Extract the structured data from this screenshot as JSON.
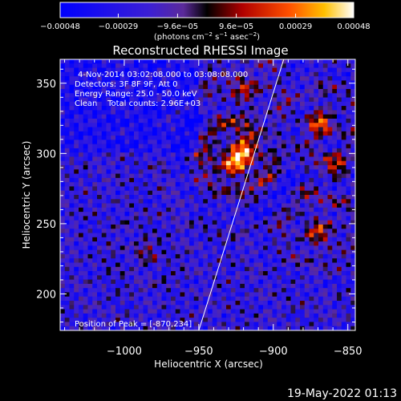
{
  "chart_data": {
    "type": "heatmap",
    "title": "Reconstructed RHESSI Image",
    "xlabel": "Heliocentric X (arcsec)",
    "ylabel": "Heliocentric Y (arcsec)",
    "xlim": [
      -1043,
      -845
    ],
    "ylim": [
      174,
      367
    ],
    "x_ticks": [
      {
        "value": -1000,
        "label": "−1000"
      },
      {
        "value": -950,
        "label": "−950"
      },
      {
        "value": -900,
        "label": "−900"
      },
      {
        "value": -850,
        "label": "−850"
      }
    ],
    "y_ticks": [
      {
        "value": 200,
        "label": "200"
      },
      {
        "value": 250,
        "label": "250"
      },
      {
        "value": 300,
        "label": "300"
      },
      {
        "value": 350,
        "label": "350"
      }
    ],
    "colorbar": {
      "range": [
        -0.00048,
        0.00048
      ],
      "ticks": [
        {
          "value": -0.00048,
          "label": "−0.00048"
        },
        {
          "value": -0.00029,
          "label": "−0.00029"
        },
        {
          "value": -9.6e-05,
          "label": "−9.6e−05"
        },
        {
          "value": 9.6e-05,
          "label": "9.6e−05"
        },
        {
          "value": 0.00029,
          "label": "0.00029"
        },
        {
          "value": 0.00048,
          "label": "0.00048"
        }
      ],
      "unit_label": {
        "pre": "(photons cm",
        "e1": "−2",
        "mid": " s",
        "e2": "−1",
        "mid2": " asec",
        "e3": "−2",
        "post": ")"
      }
    },
    "annotations": {
      "time": "4-Nov-2014 03:02:08.000 to 03:08:08.000",
      "detectors": "Detectors: 3F 8F 9F, Att 0",
      "energy": "Energy Range: 25.0 - 50.0 keV",
      "method": "Clean    Total counts: 2.96E+03",
      "peak": "Position of Peak = [-870,234]"
    },
    "limb_line": [
      [
        -950,
        174
      ],
      [
        -893,
        367
      ]
    ],
    "peak": {
      "x": -870,
      "y": 234
    },
    "sources": [
      {
        "x": -925,
        "y": 295,
        "amp": 0.00048,
        "sigma": 11
      },
      {
        "x": -918,
        "y": 305,
        "amp": 0.0003,
        "sigma": 8
      },
      {
        "x": -868,
        "y": 322,
        "amp": 0.00035,
        "sigma": 9
      },
      {
        "x": -858,
        "y": 290,
        "amp": 0.0003,
        "sigma": 8
      },
      {
        "x": -870,
        "y": 245,
        "amp": 0.00028,
        "sigma": 10
      },
      {
        "x": -920,
        "y": 345,
        "amp": 0.00022,
        "sigma": 12
      },
      {
        "x": -985,
        "y": 230,
        "amp": 0.00015,
        "sigma": 9
      }
    ]
  },
  "footer": {
    "date": "19-May-2022 01:13"
  }
}
